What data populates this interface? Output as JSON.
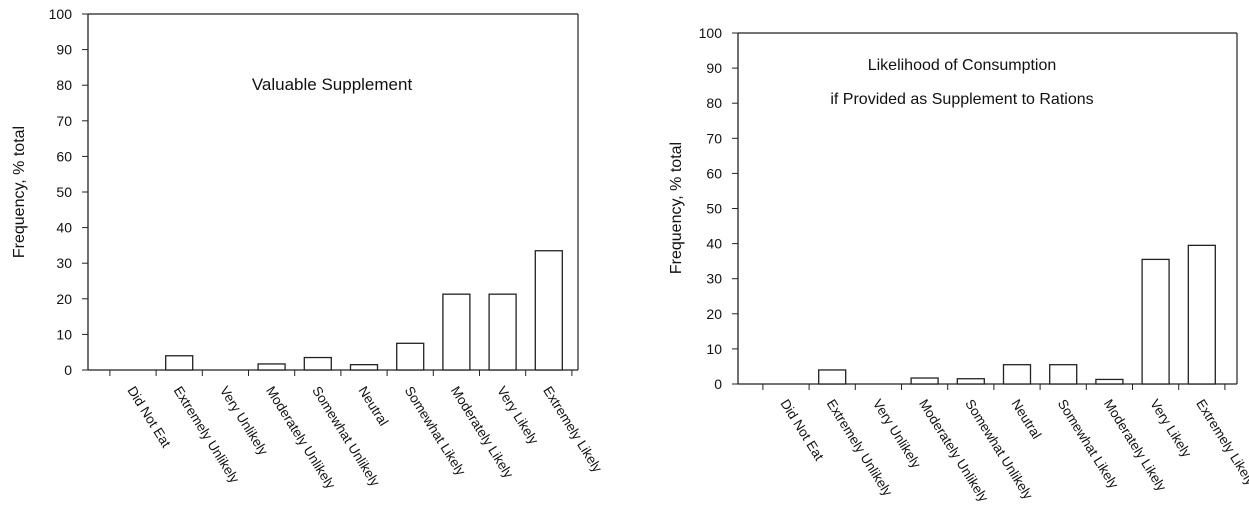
{
  "chart_data": [
    {
      "type": "bar",
      "title": "Valuable Supplement",
      "title_lines": [
        "Valuable Supplement"
      ],
      "ylabel": "Frequency, % total",
      "xlabel": "",
      "ylim": [
        0,
        100
      ],
      "yticks": [
        0,
        10,
        20,
        30,
        40,
        50,
        60,
        70,
        80,
        90,
        100
      ],
      "grid": false,
      "categories": [
        "Did Not Eat",
        "Extremely Unlikely",
        "Very Unlikely",
        "Moderately Unlikely",
        "Somewhat Unlikely",
        "Neutral",
        "Somewhat Likely",
        "Moderately Likely",
        "Very Likely",
        "Extremely Likely"
      ],
      "values": [
        0,
        4,
        0,
        1.7,
        3.5,
        1.5,
        7.5,
        21.3,
        21.3,
        33.5
      ]
    },
    {
      "type": "bar",
      "title": "Likelihood of Consumption if Provided as Supplement to Rations",
      "title_lines": [
        "Likelihood of Consumption",
        "if Provided  as Supplement to Rations"
      ],
      "ylabel": "Frequency, % total",
      "xlabel": "",
      "ylim": [
        0,
        100
      ],
      "yticks": [
        0,
        10,
        20,
        30,
        40,
        50,
        60,
        70,
        80,
        90,
        100
      ],
      "grid": false,
      "categories": [
        "Did Not Eat",
        "Extremely Unlikely",
        "Very Unlikely",
        "Moderately Unlikely",
        "Somewhat Unlikely",
        "Neutral",
        "Somewhat Likely",
        "Moderately Likely",
        "Very Likely",
        "Extremely Likely"
      ],
      "values": [
        0,
        4,
        0,
        1.7,
        1.5,
        5.5,
        5.5,
        1.3,
        35.5,
        39.5
      ]
    }
  ]
}
